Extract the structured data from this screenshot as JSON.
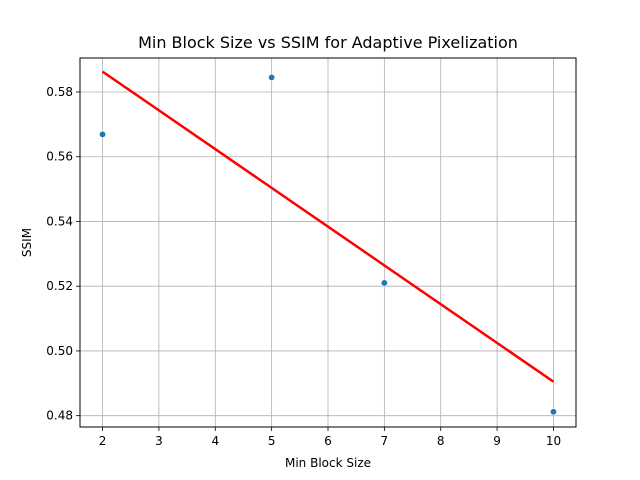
{
  "chart_data": {
    "type": "scatter",
    "title": "Min Block Size vs SSIM for Adaptive Pixelization",
    "xlabel": "Min Block Size",
    "ylabel": "SSIM",
    "xlim": [
      1.6,
      10.4
    ],
    "ylim": [
      0.4765,
      0.5905
    ],
    "xticks": [
      "2",
      "3",
      "4",
      "5",
      "6",
      "7",
      "8",
      "9",
      "10"
    ],
    "yticks": [
      "0.48",
      "0.50",
      "0.52",
      "0.54",
      "0.56",
      "0.58"
    ],
    "grid": true,
    "series": [
      {
        "kind": "scatter",
        "color": "#1f77b4",
        "points": [
          {
            "x": 2,
            "y": 0.5669
          },
          {
            "x": 5,
            "y": 0.5845
          },
          {
            "x": 7,
            "y": 0.521
          },
          {
            "x": 10,
            "y": 0.4812
          }
        ]
      },
      {
        "kind": "line",
        "color": "#ff0000",
        "points": [
          {
            "x": 2,
            "y": 0.5863
          },
          {
            "x": 10,
            "y": 0.4905
          }
        ]
      }
    ]
  }
}
